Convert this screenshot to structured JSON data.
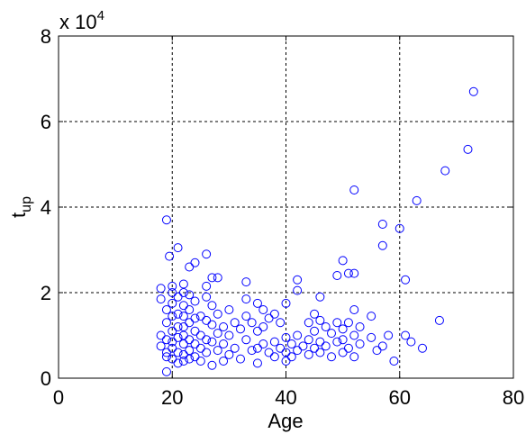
{
  "chart_data": {
    "type": "scatter",
    "xlabel": "Age",
    "ylabel": "t",
    "ylabel_sub": "up",
    "y_multiplier": "x 10",
    "y_multiplier_exp": "4",
    "xlim": [
      0,
      80
    ],
    "xticks": [
      0,
      20,
      40,
      60,
      80
    ],
    "ylim": [
      0,
      8
    ],
    "yticks": [
      0,
      2,
      4,
      6,
      8
    ],
    "grid": true,
    "color": "#0000ff",
    "x": [
      19,
      21,
      19.5,
      26,
      24,
      23,
      27,
      28,
      33,
      42,
      42,
      40,
      46,
      49,
      50,
      51,
      52,
      52,
      57,
      57,
      60,
      61,
      63,
      68,
      72,
      73,
      67,
      64,
      62,
      61,
      59,
      55,
      58,
      52,
      50,
      19,
      18,
      18,
      18,
      18,
      19,
      19,
      19,
      19,
      19,
      20,
      20,
      20,
      20,
      20,
      20,
      20,
      20,
      21,
      21,
      21,
      21,
      21,
      21,
      22,
      22,
      22,
      22,
      22,
      22,
      22,
      22,
      22,
      23,
      23,
      23,
      23,
      23,
      23,
      24,
      24,
      24,
      24,
      24,
      25,
      25,
      25,
      25,
      26,
      26,
      26,
      26,
      26,
      27,
      27,
      27,
      27,
      28,
      28,
      28,
      29,
      29,
      29,
      30,
      30,
      30,
      31,
      31,
      32,
      32,
      33,
      33,
      33,
      34,
      34,
      35,
      35,
      35,
      35,
      36,
      36,
      36,
      37,
      37,
      38,
      38,
      38,
      39,
      39,
      40,
      40,
      40,
      41,
      41,
      42,
      42,
      43,
      44,
      44,
      44,
      45,
      45,
      45,
      46,
      46,
      46,
      47,
      47,
      48,
      48,
      49,
      49,
      50,
      50,
      51,
      51,
      52,
      52,
      53,
      53,
      55,
      56,
      57
    ],
    "values": [
      3.7,
      3.05,
      2.85,
      2.9,
      2.7,
      2.6,
      2.35,
      2.35,
      2.25,
      2.3,
      2.05,
      1.75,
      1.9,
      2.4,
      2.75,
      2.45,
      2.45,
      4.4,
      3.6,
      3.1,
      3.5,
      2.3,
      4.15,
      4.85,
      5.35,
      6.7,
      1.35,
      0.7,
      0.85,
      1.0,
      0.4,
      1.45,
      1.0,
      1.6,
      0.9,
      0.15,
      2.1,
      1.85,
      1.0,
      0.75,
      1.6,
      1.3,
      0.9,
      0.6,
      0.5,
      2.15,
      2.0,
      1.75,
      1.45,
      1.1,
      0.85,
      0.7,
      0.45,
      1.9,
      1.5,
      1.2,
      0.95,
      0.6,
      0.35,
      2.2,
      2.0,
      1.7,
      1.45,
      1.2,
      1.0,
      0.8,
      0.55,
      0.4,
      1.95,
      1.6,
      1.3,
      0.9,
      0.65,
      0.45,
      1.8,
      1.4,
      1.1,
      0.8,
      0.5,
      1.45,
      1.0,
      0.7,
      0.4,
      2.15,
      1.9,
      1.35,
      0.9,
      0.6,
      1.7,
      1.25,
      0.85,
      0.3,
      1.5,
      1.05,
      0.65,
      1.2,
      0.8,
      0.4,
      1.6,
      1.0,
      0.55,
      1.3,
      0.7,
      1.15,
      0.45,
      1.85,
      1.45,
      0.9,
      1.3,
      0.65,
      1.75,
      1.1,
      0.7,
      0.35,
      1.6,
      1.2,
      0.8,
      1.4,
      0.6,
      1.5,
      0.85,
      0.5,
      1.3,
      0.7,
      0.95,
      0.6,
      0.4,
      0.8,
      0.5,
      1.0,
      0.65,
      0.75,
      1.3,
      0.9,
      0.55,
      1.5,
      1.1,
      0.7,
      1.35,
      0.85,
      0.6,
      1.2,
      0.75,
      1.05,
      0.5,
      1.3,
      0.85,
      1.15,
      0.6,
      1.3,
      0.7,
      1.0,
      0.5,
      1.2,
      0.8,
      0.95,
      0.65,
      0.75
    ]
  }
}
